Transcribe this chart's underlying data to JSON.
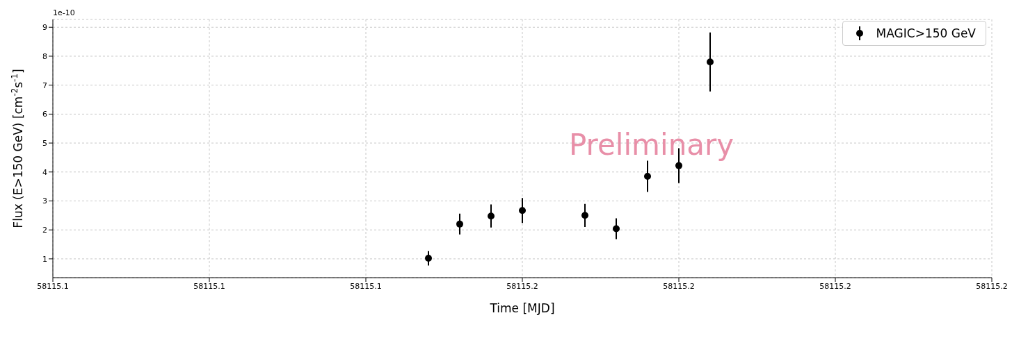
{
  "chart_data": {
    "type": "scatter",
    "xlabel": "Time [MJD]",
    "ylabel": "Flux (E>150 GeV) [cm$^{-2}$s$^{-1}$]",
    "x": [
      58115.144,
      58115.146,
      58115.148,
      58115.15,
      58115.154,
      58115.156,
      58115.158,
      58115.16,
      58115.162
    ],
    "series": [
      {
        "name": "MAGIC>150 GeV",
        "color": "#000000",
        "values": [
          1.02,
          2.2,
          2.48,
          2.67,
          2.5,
          2.04,
          3.85,
          4.22,
          7.8
        ],
        "errors": [
          0.25,
          0.36,
          0.4,
          0.43,
          0.4,
          0.36,
          0.54,
          0.6,
          1.02
        ]
      }
    ],
    "xlim": [
      58115.12,
      58115.18
    ],
    "xticks": [
      {
        "value": 58115.12,
        "label": "58115.1"
      },
      {
        "value": 58115.13,
        "label": "58115.1"
      },
      {
        "value": 58115.14,
        "label": "58115.1"
      },
      {
        "value": 58115.15,
        "label": "58115.2"
      },
      {
        "value": 58115.16,
        "label": "58115.2"
      },
      {
        "value": 58115.17,
        "label": "58115.2"
      },
      {
        "value": 58115.18,
        "label": "58115.2"
      }
    ],
    "ylim": [
      0.35,
      9.27
    ],
    "yticks": [
      1,
      2,
      3,
      4,
      5,
      6,
      7,
      8,
      9
    ],
    "annotations": [
      "1e-10",
      "Preliminary"
    ],
    "grid": true,
    "legend": "top right",
    "marker": "circle"
  }
}
